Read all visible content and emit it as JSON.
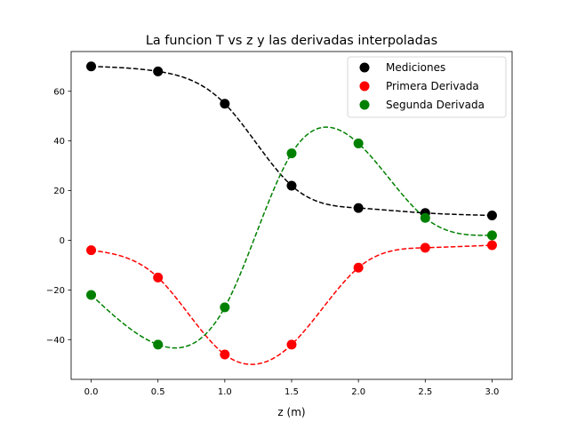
{
  "chart_data": {
    "type": "line",
    "title": "La funcion T vs z y las derivadas interpoladas",
    "xlabel": "z (m)",
    "ylabel": "",
    "xlim": [
      -0.15,
      3.15
    ],
    "ylim": [
      -56,
      76
    ],
    "xticks": [
      0.0,
      0.5,
      1.0,
      1.5,
      2.0,
      2.5,
      3.0
    ],
    "xtick_labels": [
      "0.0",
      "0.5",
      "1.0",
      "1.5",
      "2.0",
      "2.5",
      "3.0"
    ],
    "yticks": [
      -40,
      -20,
      0,
      20,
      40,
      60
    ],
    "ytick_labels": [
      "−40",
      "−20",
      "0",
      "20",
      "40",
      "60"
    ],
    "grid": false,
    "legend_position": "top-right",
    "series": [
      {
        "name": "Mediciones",
        "color": "#000000",
        "x": [
          0.0,
          0.5,
          1.0,
          1.5,
          2.0,
          2.5,
          3.0
        ],
        "y": [
          70,
          68,
          55,
          22,
          13,
          11,
          10
        ]
      },
      {
        "name": "Primera Derivada",
        "color": "#ff0000",
        "x": [
          0.0,
          0.5,
          1.0,
          1.5,
          2.0,
          2.5,
          3.0
        ],
        "y": [
          -4,
          -15,
          -46,
          -42,
          -11,
          -3,
          -2
        ]
      },
      {
        "name": "Segunda Derivada",
        "color": "#008000",
        "x": [
          0.0,
          0.5,
          1.0,
          1.5,
          2.0,
          2.5,
          3.0
        ],
        "y": [
          -22,
          -42,
          -27,
          35,
          39,
          9,
          2
        ]
      }
    ]
  }
}
